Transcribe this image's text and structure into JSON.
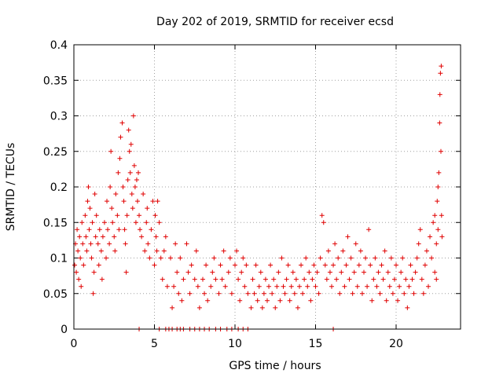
{
  "chart_data": {
    "type": "scatter",
    "title": "Day 202 of 2019, SRMTID for receiver ecsd",
    "xlabel": "GPS time / hours",
    "ylabel": "SRMTID / TECUs",
    "xlim": [
      0,
      24
    ],
    "ylim": [
      0,
      0.4
    ],
    "xticks": [
      0,
      5,
      10,
      15,
      20
    ],
    "xtick_labels": [
      "0",
      "5",
      "10",
      "15",
      "20"
    ],
    "yticks": [
      0,
      0.05,
      0.1,
      0.15,
      0.2,
      0.25,
      0.3,
      0.35,
      0.4
    ],
    "ytick_labels": [
      "0",
      "0.05",
      "0.1",
      "0.15",
      "0.2",
      "0.25",
      "0.3",
      "0.35",
      "0.4"
    ],
    "grid": true,
    "marker": "+",
    "color": "#e00000",
    "series": [
      {
        "name": "SRMTID",
        "points": [
          [
            0.05,
            0.09
          ],
          [
            0.1,
            0.12
          ],
          [
            0.15,
            0.08
          ],
          [
            0.2,
            0.14
          ],
          [
            0.25,
            0.11
          ],
          [
            0.3,
            0.07
          ],
          [
            0.35,
            0.13
          ],
          [
            0.4,
            0.1
          ],
          [
            0.45,
            0.06
          ],
          [
            0.5,
            0.15
          ],
          [
            0.55,
            0.12
          ],
          [
            0.6,
            0.09
          ],
          [
            0.7,
            0.16
          ],
          [
            0.75,
            0.13
          ],
          [
            0.8,
            0.11
          ],
          [
            0.85,
            0.18
          ],
          [
            0.9,
            0.2
          ],
          [
            0.95,
            0.14
          ],
          [
            1.0,
            0.17
          ],
          [
            1.05,
            0.12
          ],
          [
            1.1,
            0.1
          ],
          [
            1.15,
            0.15
          ],
          [
            1.2,
            0.05
          ],
          [
            1.25,
            0.08
          ],
          [
            1.3,
            0.19
          ],
          [
            1.35,
            0.13
          ],
          [
            1.4,
            0.16
          ],
          [
            1.5,
            0.12
          ],
          [
            1.55,
            0.09
          ],
          [
            1.6,
            0.14
          ],
          [
            1.7,
            0.11
          ],
          [
            1.75,
            0.07
          ],
          [
            1.8,
            0.13
          ],
          [
            1.9,
            0.15
          ],
          [
            2.0,
            0.1
          ],
          [
            2.05,
            0.18
          ],
          [
            2.1,
            0.14
          ],
          [
            2.2,
            0.12
          ],
          [
            2.25,
            0.2
          ],
          [
            2.3,
            0.25
          ],
          [
            2.35,
            0.17
          ],
          [
            2.4,
            0.15
          ],
          [
            2.5,
            0.13
          ],
          [
            2.55,
            0.11
          ],
          [
            2.6,
            0.19
          ],
          [
            2.7,
            0.16
          ],
          [
            2.75,
            0.22
          ],
          [
            2.8,
            0.14
          ],
          [
            2.85,
            0.24
          ],
          [
            2.9,
            0.27
          ],
          [
            3.0,
            0.29
          ],
          [
            3.05,
            0.2
          ],
          [
            3.1,
            0.18
          ],
          [
            3.15,
            0.14
          ],
          [
            3.2,
            0.12
          ],
          [
            3.25,
            0.08
          ],
          [
            3.3,
            0.16
          ],
          [
            3.35,
            0.21
          ],
          [
            3.4,
            0.28
          ],
          [
            3.45,
            0.25
          ],
          [
            3.5,
            0.22
          ],
          [
            3.55,
            0.26
          ],
          [
            3.6,
            0.19
          ],
          [
            3.65,
            0.17
          ],
          [
            3.7,
            0.3
          ],
          [
            3.75,
            0.23
          ],
          [
            3.8,
            0.2
          ],
          [
            3.85,
            0.15
          ],
          [
            3.9,
            0.21
          ],
          [
            3.95,
            0.18
          ],
          [
            4.0,
            0.22
          ],
          [
            4.05,
            0.16
          ],
          [
            4.1,
            0.14
          ],
          [
            4.2,
            0.13
          ],
          [
            4.3,
            0.19
          ],
          [
            4.4,
            0.11
          ],
          [
            4.5,
            0.15
          ],
          [
            4.55,
            0.17
          ],
          [
            4.6,
            0.12
          ],
          [
            4.7,
            0.1
          ],
          [
            4.8,
            0.14
          ],
          [
            4.9,
            0.18
          ],
          [
            5.0,
            0.09
          ],
          [
            5.05,
            0.16
          ],
          [
            5.1,
            0.13
          ],
          [
            5.15,
            0.11
          ],
          [
            5.2,
            0.18
          ],
          [
            5.3,
            0.15
          ],
          [
            5.4,
            0.1
          ],
          [
            5.5,
            0.07
          ],
          [
            5.6,
            0.11
          ],
          [
            5.7,
            0.13
          ],
          [
            5.8,
            0.06
          ],
          [
            6.0,
            0.1
          ],
          [
            6.1,
            0.03
          ],
          [
            6.2,
            0.06
          ],
          [
            6.3,
            0.12
          ],
          [
            6.4,
            0.08
          ],
          [
            6.5,
            0.05
          ],
          [
            6.6,
            0.1
          ],
          [
            6.7,
            0.04
          ],
          [
            6.8,
            0.07
          ],
          [
            7.0,
            0.12
          ],
          [
            7.1,
            0.08
          ],
          [
            7.2,
            0.05
          ],
          [
            7.3,
            0.09
          ],
          [
            7.5,
            0.07
          ],
          [
            7.6,
            0.11
          ],
          [
            7.7,
            0.06
          ],
          [
            7.8,
            0.03
          ],
          [
            8.0,
            0.07
          ],
          [
            8.1,
            0.05
          ],
          [
            8.2,
            0.09
          ],
          [
            8.3,
            0.04
          ],
          [
            8.5,
            0.06
          ],
          [
            8.6,
            0.08
          ],
          [
            8.7,
            0.1
          ],
          [
            8.8,
            0.07
          ],
          [
            9.0,
            0.05
          ],
          [
            9.1,
            0.09
          ],
          [
            9.2,
            0.07
          ],
          [
            9.3,
            0.11
          ],
          [
            9.4,
            0.06
          ],
          [
            9.6,
            0.08
          ],
          [
            9.7,
            0.1
          ],
          [
            9.8,
            0.05
          ],
          [
            10.0,
            0.09
          ],
          [
            10.1,
            0.11
          ],
          [
            10.2,
            0.07
          ],
          [
            10.3,
            0.04
          ],
          [
            10.4,
            0.08
          ],
          [
            10.5,
            0.1
          ],
          [
            10.6,
            0.06
          ],
          [
            10.7,
            0.09
          ],
          [
            10.8,
            0.05
          ],
          [
            11.0,
            0.03
          ],
          [
            11.1,
            0.07
          ],
          [
            11.2,
            0.05
          ],
          [
            11.3,
            0.09
          ],
          [
            11.4,
            0.04
          ],
          [
            11.5,
            0.06
          ],
          [
            11.6,
            0.08
          ],
          [
            11.7,
            0.03
          ],
          [
            11.8,
            0.05
          ],
          [
            11.9,
            0.07
          ],
          [
            12.0,
            0.04
          ],
          [
            12.1,
            0.06
          ],
          [
            12.2,
            0.09
          ],
          [
            12.3,
            0.05
          ],
          [
            12.4,
            0.07
          ],
          [
            12.5,
            0.03
          ],
          [
            12.6,
            0.06
          ],
          [
            12.7,
            0.08
          ],
          [
            12.8,
            0.04
          ],
          [
            12.9,
            0.1
          ],
          [
            13.0,
            0.06
          ],
          [
            13.1,
            0.05
          ],
          [
            13.2,
            0.07
          ],
          [
            13.3,
            0.09
          ],
          [
            13.4,
            0.04
          ],
          [
            13.5,
            0.06
          ],
          [
            13.6,
            0.08
          ],
          [
            13.7,
            0.05
          ],
          [
            13.8,
            0.07
          ],
          [
            13.9,
            0.03
          ],
          [
            14.0,
            0.06
          ],
          [
            14.1,
            0.09
          ],
          [
            14.2,
            0.05
          ],
          [
            14.3,
            0.07
          ],
          [
            14.4,
            0.1
          ],
          [
            14.5,
            0.06
          ],
          [
            14.6,
            0.08
          ],
          [
            14.7,
            0.04
          ],
          [
            14.8,
            0.07
          ],
          [
            14.9,
            0.09
          ],
          [
            15.0,
            0.06
          ],
          [
            15.1,
            0.08
          ],
          [
            15.2,
            0.05
          ],
          [
            15.3,
            0.1
          ],
          [
            15.4,
            0.16
          ],
          [
            15.5,
            0.15
          ],
          [
            15.6,
            0.09
          ],
          [
            15.7,
            0.07
          ],
          [
            15.8,
            0.11
          ],
          [
            15.9,
            0.08
          ],
          [
            16.0,
            0.06
          ],
          [
            16.1,
            0.09
          ],
          [
            16.2,
            0.12
          ],
          [
            16.3,
            0.07
          ],
          [
            16.4,
            0.1
          ],
          [
            16.5,
            0.05
          ],
          [
            16.6,
            0.08
          ],
          [
            16.7,
            0.11
          ],
          [
            16.8,
            0.06
          ],
          [
            16.9,
            0.09
          ],
          [
            17.0,
            0.13
          ],
          [
            17.1,
            0.07
          ],
          [
            17.2,
            0.1
          ],
          [
            17.3,
            0.05
          ],
          [
            17.4,
            0.08
          ],
          [
            17.5,
            0.12
          ],
          [
            17.6,
            0.06
          ],
          [
            17.7,
            0.09
          ],
          [
            17.8,
            0.11
          ],
          [
            17.9,
            0.05
          ],
          [
            18.0,
            0.08
          ],
          [
            18.1,
            0.1
          ],
          [
            18.2,
            0.06
          ],
          [
            18.3,
            0.14
          ],
          [
            18.4,
            0.09
          ],
          [
            18.5,
            0.04
          ],
          [
            18.6,
            0.07
          ],
          [
            18.7,
            0.1
          ],
          [
            18.8,
            0.06
          ],
          [
            18.9,
            0.08
          ],
          [
            19.0,
            0.05
          ],
          [
            19.1,
            0.09
          ],
          [
            19.2,
            0.07
          ],
          [
            19.3,
            0.11
          ],
          [
            19.4,
            0.04
          ],
          [
            19.5,
            0.08
          ],
          [
            19.6,
            0.06
          ],
          [
            19.7,
            0.1
          ],
          [
            19.8,
            0.05
          ],
          [
            19.9,
            0.07
          ],
          [
            20.0,
            0.09
          ],
          [
            20.1,
            0.04
          ],
          [
            20.2,
            0.06
          ],
          [
            20.3,
            0.08
          ],
          [
            20.4,
            0.1
          ],
          [
            20.5,
            0.05
          ],
          [
            20.6,
            0.07
          ],
          [
            20.7,
            0.03
          ],
          [
            20.8,
            0.06
          ],
          [
            20.9,
            0.09
          ],
          [
            21.0,
            0.07
          ],
          [
            21.1,
            0.05
          ],
          [
            21.2,
            0.08
          ],
          [
            21.3,
            0.1
          ],
          [
            21.4,
            0.12
          ],
          [
            21.5,
            0.14
          ],
          [
            21.6,
            0.07
          ],
          [
            21.7,
            0.05
          ],
          [
            21.8,
            0.09
          ],
          [
            21.9,
            0.11
          ],
          [
            22.0,
            0.06
          ],
          [
            22.1,
            0.13
          ],
          [
            22.2,
            0.1
          ],
          [
            22.3,
            0.15
          ],
          [
            22.4,
            0.08
          ],
          [
            22.5,
            0.12
          ],
          [
            22.55,
            0.18
          ],
          [
            22.6,
            0.2
          ],
          [
            22.65,
            0.22
          ],
          [
            22.7,
            0.29
          ],
          [
            22.72,
            0.33
          ],
          [
            22.75,
            0.36
          ],
          [
            22.8,
            0.37
          ],
          [
            22.78,
            0.25
          ],
          [
            22.82,
            0.16
          ],
          [
            22.85,
            0.13
          ],
          [
            22.6,
            0.14
          ],
          [
            22.5,
            0.07
          ],
          [
            22.4,
            0.16
          ],
          [
            4.05,
            0
          ],
          [
            5.3,
            0
          ],
          [
            5.7,
            0
          ],
          [
            5.9,
            0
          ],
          [
            6.1,
            0
          ],
          [
            6.4,
            0
          ],
          [
            6.6,
            0
          ],
          [
            6.8,
            0
          ],
          [
            7.2,
            0
          ],
          [
            7.5,
            0
          ],
          [
            7.8,
            0
          ],
          [
            8.1,
            0
          ],
          [
            8.4,
            0
          ],
          [
            8.8,
            0
          ],
          [
            9.1,
            0
          ],
          [
            9.5,
            0
          ],
          [
            9.8,
            0
          ],
          [
            10.2,
            0
          ],
          [
            10.5,
            0
          ],
          [
            10.8,
            0
          ],
          [
            16.1,
            0
          ]
        ]
      }
    ]
  }
}
